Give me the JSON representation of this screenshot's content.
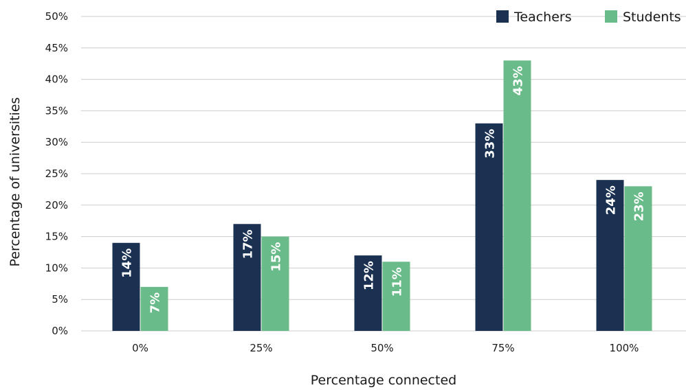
{
  "chart_data": {
    "type": "bar",
    "categories": [
      "0%",
      "25%",
      "50%",
      "75%",
      "100%"
    ],
    "series": [
      {
        "name": "Teachers",
        "values": [
          14,
          17,
          12,
          33,
          24
        ],
        "labels": [
          "14%",
          "17%",
          "12%",
          "33%",
          "24%"
        ],
        "color": "#1b3152"
      },
      {
        "name": "Students",
        "values": [
          7,
          15,
          11,
          43,
          23
        ],
        "labels": [
          "7%",
          "15%",
          "11%",
          "43%",
          "23%"
        ],
        "color": "#6abb8a"
      }
    ],
    "title": "",
    "xlabel": "Percentage connected",
    "ylabel": "Percentage of universities",
    "ylim": [
      0,
      50
    ],
    "yticks": [
      0,
      5,
      10,
      15,
      20,
      25,
      30,
      35,
      40,
      45,
      50
    ],
    "ytick_labels": [
      "0%",
      "5%",
      "10%",
      "15%",
      "20%",
      "25%",
      "30%",
      "35%",
      "40%",
      "45%",
      "50%"
    ],
    "grid": true,
    "legend": "top-right",
    "gridline_color": "#cccccc"
  }
}
